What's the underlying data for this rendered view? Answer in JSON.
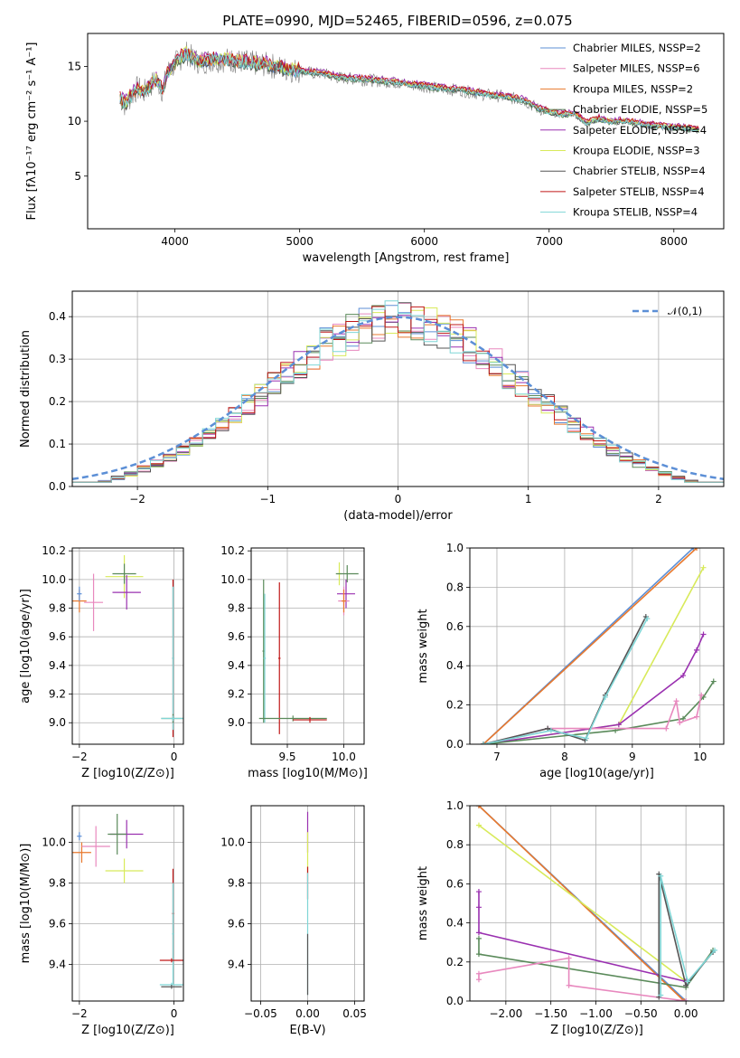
{
  "figure": {
    "title": "PLATE=0990, MJD=52465, FIBERID=0596, z=0.075"
  },
  "chart_data": [
    {
      "id": "spectrum",
      "type": "line",
      "title": "PLATE=0990, MJD=52465, FIBERID=0596, z=0.075",
      "xlabel": "wavelength [Angstrom, rest frame]",
      "ylabel": "Flux [fλ10⁻¹⁷ erg cm⁻² s⁻¹ A⁻¹]",
      "xlim": [
        3300,
        8400
      ],
      "ylim": [
        0.2,
        18
      ],
      "xticks": [
        4000,
        5000,
        6000,
        7000,
        8000
      ],
      "yticks": [
        5,
        10,
        15
      ],
      "grid": false,
      "legend": "upper right",
      "observed_color": "#808080",
      "observed": {
        "x": [
          3560,
          3600,
          3650,
          3700,
          3750,
          3800,
          3850,
          3900,
          3950,
          4000,
          4050,
          4100,
          4150,
          4200,
          4300,
          4400,
          4500,
          4600,
          4700,
          4800,
          4900,
          5000,
          5100,
          5200,
          5300,
          5400,
          5500,
          5600,
          5700,
          5800,
          5900,
          6000,
          6100,
          6200,
          6300,
          6400,
          6500,
          6600,
          6700,
          6800,
          6900,
          7000,
          7100,
          7200,
          7300,
          7400,
          7500,
          7600,
          7700,
          7800,
          7900,
          8000,
          8100,
          8200
        ],
        "y": [
          12.1,
          11.5,
          12.3,
          13.0,
          12.6,
          13.2,
          13.8,
          12.8,
          14.6,
          15.2,
          15.8,
          16.2,
          15.6,
          15.4,
          15.6,
          15.6,
          15.5,
          15.3,
          15.2,
          15.0,
          14.7,
          14.6,
          14.4,
          14.3,
          14.0,
          13.9,
          13.8,
          13.7,
          13.6,
          13.5,
          13.3,
          13.2,
          13.0,
          12.9,
          12.8,
          12.6,
          12.4,
          12.3,
          12.1,
          11.9,
          11.2,
          10.8,
          10.6,
          10.7,
          9.8,
          10.2,
          9.9,
          10.0,
          9.8,
          9.6,
          9.5,
          9.4,
          9.3,
          9.2
        ]
      },
      "series": [
        {
          "name": "Chabrier MILES, N$_{SSP}$=2",
          "color": "#5c8fd6",
          "offset": 0.0
        },
        {
          "name": "Salpeter MILES, N$_{SSP}$=6",
          "color": "#e888be",
          "offset": 0.15
        },
        {
          "name": "Kroupa MILES, N$_{SSP}$=2",
          "color": "#e8782c",
          "offset": 0.05
        },
        {
          "name": "Chabrier ELODIE, N$_{SSP}$=5",
          "color": "#5a8a5a",
          "offset": -0.1
        },
        {
          "name": "Salpeter ELODIE, N$_{SSP}$=4",
          "color": "#9a30b0",
          "offset": 0.25
        },
        {
          "name": "Kroupa ELODIE, N$_{SSP}$=3",
          "color": "#d8ea5a",
          "offset": 0.1
        },
        {
          "name": "Chabrier STELIB, N$_{SSP}$=4",
          "color": "#555555",
          "offset": -0.05
        },
        {
          "name": "Salpeter STELIB, N$_{SSP}$=4",
          "color": "#c01818",
          "offset": 0.2
        },
        {
          "name": "Kroupa STELIB, N$_{SSP}$=4",
          "color": "#7fd6d6",
          "offset": 0.0
        }
      ]
    },
    {
      "id": "residuals",
      "type": "line",
      "xlabel": "(data-model)/error",
      "ylabel": "Normed distribution",
      "xlim": [
        -2.5,
        2.5
      ],
      "ylim": [
        0,
        0.46
      ],
      "xticks": [
        -2,
        -1,
        0,
        1,
        2
      ],
      "yticks": [
        0.0,
        0.1,
        0.2,
        0.3,
        0.4
      ],
      "grid": true,
      "legend": "upper right",
      "gaussian": {
        "name": "$\\mathcal{N}(0,1)$",
        "color": "#5c8fd6",
        "mu": 0,
        "sigma": 1
      },
      "bin_width": 0.1
    },
    {
      "id": "age-vs-Z",
      "type": "scatter",
      "xlabel": "Z [log$_{10}$(Z/Z$_\\odot$)]",
      "ylabel": "age  [log$_{10}$(age/yr)]",
      "xlim": [
        -2.15,
        0.2
      ],
      "ylim": [
        8.85,
        10.22
      ],
      "xticks": [
        -2,
        0
      ],
      "yticks": [
        9.0,
        9.2,
        9.4,
        9.6,
        9.8,
        10.0,
        10.2
      ],
      "grid": true,
      "points": [
        {
          "x": -2.0,
          "y": 9.85,
          "xerr": 0.15,
          "yerr": 0.08,
          "color": "#e8782c"
        },
        {
          "x": -1.7,
          "y": 9.84,
          "xerr": 0.2,
          "yerr": 0.2,
          "color": "#e888be"
        },
        {
          "x": -1.05,
          "y": 10.02,
          "xerr": 0.4,
          "yerr": 0.15,
          "color": "#d8ea5a"
        },
        {
          "x": -1.0,
          "y": 9.91,
          "xerr": 0.3,
          "yerr": 0.12,
          "color": "#9a30b0"
        },
        {
          "x": -1.05,
          "y": 10.04,
          "xerr": 0.25,
          "yerr": 0.07,
          "color": "#5a8a5a"
        },
        {
          "x": -2.0,
          "y": 9.9,
          "xerr": 0.05,
          "yerr": 0.05,
          "color": "#5c8fd6"
        },
        {
          "x": -0.02,
          "y": 9.45,
          "xerr": 0.02,
          "yerr": 0.55,
          "color": "#c01818"
        },
        {
          "x": -0.02,
          "y": 9.45,
          "xerr": 0.02,
          "yerr": 0.5,
          "color": "#7fd6d6"
        },
        {
          "x": -0.02,
          "y": 9.03,
          "xerr": 0.25,
          "yerr": 0.03,
          "color": "#5a8a5a"
        },
        {
          "x": -0.02,
          "y": 9.03,
          "xerr": 0.25,
          "yerr": 0.02,
          "color": "#7fd6d6"
        }
      ]
    },
    {
      "id": "age-vs-mass",
      "type": "scatter",
      "xlabel": "mass [log$_{10}$(M/M$_\\odot$)]",
      "ylabel": "",
      "xlim": [
        9.18,
        10.18
      ],
      "ylim": [
        8.85,
        10.22
      ],
      "xticks": [
        9.5,
        10.0
      ],
      "yticks": [
        9.0,
        9.2,
        9.4,
        9.6,
        9.8,
        10.0,
        10.2
      ],
      "grid": true,
      "points": [
        {
          "x": 9.96,
          "y": 10.04,
          "xerr": 0.02,
          "yerr": 0.08,
          "color": "#d8ea5a"
        },
        {
          "x": 10.03,
          "y": 10.04,
          "xerr": 0.1,
          "yerr": 0.06,
          "color": "#5a8a5a"
        },
        {
          "x": 10.02,
          "y": 9.9,
          "xerr": 0.08,
          "yerr": 0.1,
          "color": "#9a30b0"
        },
        {
          "x": 10.0,
          "y": 9.85,
          "xerr": 0.05,
          "yerr": 0.1,
          "color": "#e888be"
        },
        {
          "x": 10.0,
          "y": 9.85,
          "xerr": 0.02,
          "yerr": 0.08,
          "color": "#e8782c"
        },
        {
          "x": 9.29,
          "y": 9.5,
          "xerr": 0.01,
          "yerr": 0.5,
          "color": "#5a8a5a"
        },
        {
          "x": 9.3,
          "y": 9.45,
          "xerr": 0.01,
          "yerr": 0.45,
          "color": "#7fd6d6"
        },
        {
          "x": 9.43,
          "y": 9.45,
          "xerr": 0.01,
          "yerr": 0.53,
          "color": "#c01818"
        },
        {
          "x": 9.55,
          "y": 9.03,
          "xerr": 0.3,
          "yerr": 0.02,
          "color": "#5a8a5a"
        },
        {
          "x": 9.7,
          "y": 9.02,
          "xerr": 0.15,
          "yerr": 0.02,
          "color": "#c01818"
        }
      ]
    },
    {
      "id": "massweight-vs-age",
      "type": "line",
      "xlabel": "age  [log$_{10}$(age/yr)]",
      "ylabel": "mass weight",
      "xlim": [
        6.6,
        10.35
      ],
      "ylim": [
        0,
        1.0
      ],
      "xticks": [
        7,
        8,
        9,
        10
      ],
      "yticks": [
        0.0,
        0.2,
        0.4,
        0.6,
        0.8,
        1.0
      ],
      "grid": true,
      "series": [
        {
          "color": "#5c8fd6",
          "x": [
            6.8,
            9.9
          ],
          "y": [
            0.0,
            1.0
          ]
        },
        {
          "color": "#e8782c",
          "x": [
            6.8,
            9.95
          ],
          "y": [
            0.0,
            1.0
          ]
        },
        {
          "color": "#d8ea5a",
          "x": [
            6.8,
            8.8,
            10.05
          ],
          "y": [
            0.0,
            0.1,
            0.9
          ]
        },
        {
          "color": "#9a30b0",
          "x": [
            6.8,
            8.8,
            9.75,
            9.95,
            10.05
          ],
          "y": [
            0.0,
            0.1,
            0.35,
            0.48,
            0.56
          ]
        },
        {
          "color": "#5a8a5a",
          "x": [
            6.8,
            8.75,
            9.75,
            10.05,
            10.2
          ],
          "y": [
            0.0,
            0.07,
            0.13,
            0.24,
            0.32
          ]
        },
        {
          "color": "#e888be",
          "x": [
            6.8,
            7.75,
            9.5,
            9.65,
            9.7,
            9.95,
            10.02
          ],
          "y": [
            0.0,
            0.08,
            0.08,
            0.22,
            0.11,
            0.14,
            0.25
          ]
        },
        {
          "color": "#555555",
          "x": [
            6.8,
            7.75,
            8.3,
            8.6,
            9.2
          ],
          "y": [
            0.0,
            0.08,
            0.02,
            0.25,
            0.65
          ]
        },
        {
          "color": "#7fd6d6",
          "x": [
            6.8,
            7.8,
            8.32,
            8.6,
            9.22
          ],
          "y": [
            0.0,
            0.07,
            0.03,
            0.24,
            0.64
          ]
        }
      ]
    },
    {
      "id": "mass-vs-Z",
      "type": "scatter",
      "xlabel": "Z [log$_{10}$(Z/Z$_\\odot$)]",
      "ylabel": "mass [log$_{10}$(M/M$_\\odot$)]",
      "xlim": [
        -2.15,
        0.2
      ],
      "ylim": [
        9.22,
        10.18
      ],
      "xticks": [
        -2,
        0
      ],
      "yticks": [
        9.4,
        9.6,
        9.8,
        10.0
      ],
      "grid": true,
      "points": [
        {
          "x": -2.0,
          "y": 10.03,
          "xerr": 0.05,
          "yerr": 0.02,
          "color": "#5c8fd6"
        },
        {
          "x": -1.95,
          "y": 9.95,
          "xerr": 0.2,
          "yerr": 0.05,
          "color": "#e8782c"
        },
        {
          "x": -1.65,
          "y": 9.98,
          "xerr": 0.3,
          "yerr": 0.1,
          "color": "#e888be"
        },
        {
          "x": -1.05,
          "y": 9.86,
          "xerr": 0.4,
          "yerr": 0.06,
          "color": "#d8ea5a"
        },
        {
          "x": -1.0,
          "y": 10.04,
          "xerr": 0.35,
          "yerr": 0.07,
          "color": "#9a30b0"
        },
        {
          "x": -1.2,
          "y": 10.04,
          "xerr": 0.2,
          "yerr": 0.1,
          "color": "#5a8a5a"
        },
        {
          "x": -0.02,
          "y": 9.65,
          "xerr": 0.02,
          "yerr": 0.22,
          "color": "#c01818"
        },
        {
          "x": -0.02,
          "y": 9.55,
          "xerr": 0.02,
          "yerr": 0.25,
          "color": "#7fd6d6"
        },
        {
          "x": -0.05,
          "y": 9.42,
          "xerr": 0.25,
          "yerr": 0.01,
          "color": "#c01818"
        },
        {
          "x": -0.05,
          "y": 9.3,
          "xerr": 0.25,
          "yerr": 0.01,
          "color": "#7fd6d6"
        },
        {
          "x": -0.05,
          "y": 9.29,
          "xerr": 0.22,
          "yerr": 0.01,
          "color": "#555555"
        }
      ]
    },
    {
      "id": "mass-vs-EBV",
      "type": "scatter",
      "xlabel": "E(B-V)",
      "ylabel": "",
      "xlim": [
        -0.06,
        0.06
      ],
      "ylim": [
        9.22,
        10.18
      ],
      "xticks": [
        -0.05,
        0.0,
        0.05
      ],
      "yticks": [
        9.4,
        9.6,
        9.8,
        10.0
      ],
      "grid": true,
      "points": [
        {
          "x": 0.0,
          "y": 10.05,
          "xerr": 0.0,
          "yerr": 0.1,
          "color": "#9a30b0"
        },
        {
          "x": 0.0,
          "y": 9.95,
          "xerr": 0.0,
          "yerr": 0.1,
          "color": "#d8ea5a"
        },
        {
          "x": 0.0,
          "y": 9.8,
          "xerr": 0.0,
          "yerr": 0.08,
          "color": "#c01818"
        },
        {
          "x": 0.0,
          "y": 9.55,
          "xerr": 0.0,
          "yerr": 0.3,
          "color": "#7fd6d6"
        },
        {
          "x": 0.0,
          "y": 9.4,
          "xerr": 0.0,
          "yerr": 0.15,
          "color": "#555555"
        }
      ]
    },
    {
      "id": "massweight-vs-Z",
      "type": "line",
      "xlabel": "Z [log$_{10}$(Z/Z$_\\odot$)]",
      "ylabel": "mass weight",
      "xlim": [
        -2.4,
        0.42
      ],
      "ylim": [
        0,
        1.0
      ],
      "xticks": [
        -2.0,
        -1.5,
        -1.0,
        -0.5,
        0.0
      ],
      "yticks": [
        0.0,
        0.2,
        0.4,
        0.6,
        0.8,
        1.0
      ],
      "grid": true,
      "series": [
        {
          "color": "#5c8fd6",
          "x": [
            -2.3,
            0.0
          ],
          "y": [
            1.0,
            0.0
          ]
        },
        {
          "color": "#e8782c",
          "x": [
            -2.3,
            -0.02
          ],
          "y": [
            1.0,
            0.0
          ]
        },
        {
          "color": "#d8ea5a",
          "x": [
            -2.3,
            0.0
          ],
          "y": [
            0.9,
            0.1
          ]
        },
        {
          "color": "#9a30b0",
          "x": [
            -2.3,
            -2.3,
            -2.3,
            0.0
          ],
          "y": [
            0.56,
            0.48,
            0.35,
            0.1
          ]
        },
        {
          "color": "#5a8a5a",
          "x": [
            -2.3,
            -2.3,
            0.0,
            0.3
          ],
          "y": [
            0.32,
            0.24,
            0.07,
            0.26
          ]
        },
        {
          "color": "#e888be",
          "x": [
            -2.3,
            -2.3,
            -1.3,
            -1.3,
            0.0
          ],
          "y": [
            0.11,
            0.14,
            0.22,
            0.08,
            0.0
          ]
        },
        {
          "color": "#555555",
          "x": [
            -0.3,
            -0.3,
            0.0,
            0.3
          ],
          "y": [
            0.02,
            0.65,
            0.08,
            0.25
          ]
        },
        {
          "color": "#7fd6d6",
          "x": [
            -0.28,
            -0.28,
            0.02,
            0.32
          ],
          "y": [
            0.03,
            0.64,
            0.1,
            0.26
          ]
        }
      ]
    }
  ]
}
